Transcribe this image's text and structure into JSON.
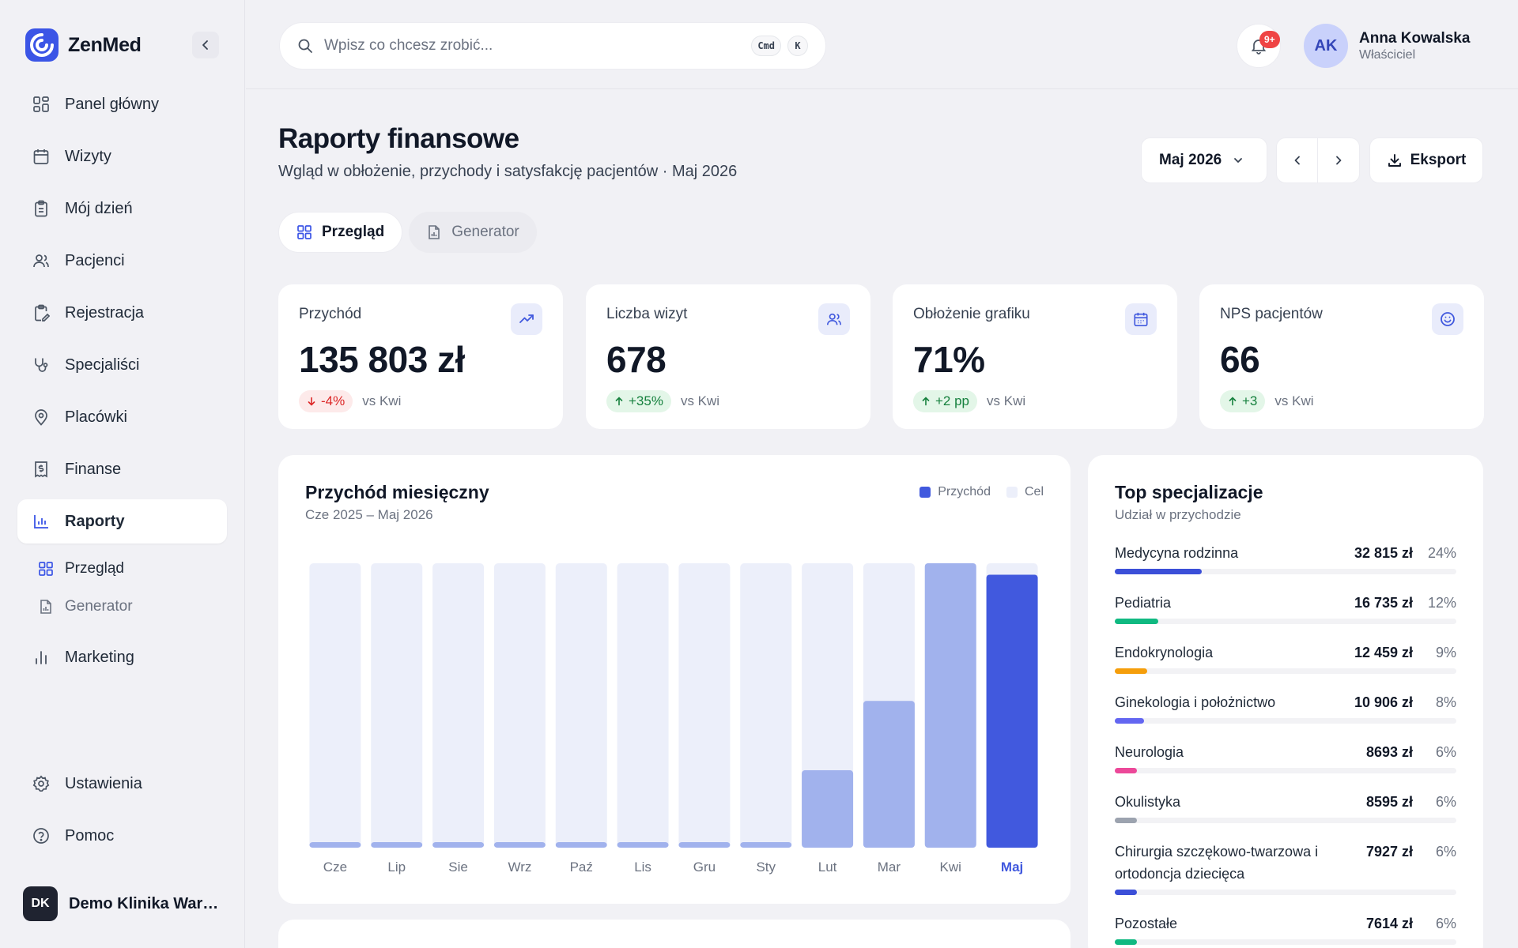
{
  "app": {
    "name": "ZenMed"
  },
  "sidebar": {
    "items": [
      {
        "label": "Panel główny",
        "icon": "dashboard-icon"
      },
      {
        "label": "Wizyty",
        "icon": "calendar-icon"
      },
      {
        "label": "Mój dzień",
        "icon": "clipboard-icon"
      },
      {
        "label": "Pacjenci",
        "icon": "users-icon"
      },
      {
        "label": "Rejestracja",
        "icon": "clipboard-edit-icon"
      },
      {
        "label": "Specjaliści",
        "icon": "stethoscope-icon"
      },
      {
        "label": "Placówki",
        "icon": "map-pin-icon"
      },
      {
        "label": "Finanse",
        "icon": "receipt-icon"
      },
      {
        "label": "Raporty",
        "icon": "bar-chart-icon"
      },
      {
        "label": "Marketing",
        "icon": "bar-chart-vertical-icon"
      }
    ],
    "subitems": [
      {
        "label": "Przegląd",
        "icon": "grid-icon"
      },
      {
        "label": "Generator",
        "icon": "file-chart-icon"
      }
    ],
    "bottom": [
      {
        "label": "Ustawienia",
        "icon": "gear-icon"
      },
      {
        "label": "Pomoc",
        "icon": "help-circle-icon"
      }
    ],
    "org": {
      "initials": "DK",
      "name": "Demo Klinika Warszawa"
    }
  },
  "header": {
    "search_placeholder": "Wpisz co chcesz zrobić...",
    "kbd_cmd": "Cmd",
    "kbd_k": "K",
    "notification_count": "9+",
    "user": {
      "initials": "AK",
      "name": "Anna Kowalska",
      "role": "Właściciel"
    }
  },
  "page": {
    "title": "Raporty finansowe",
    "subtitle": "Wgląd w obłożenie, przychody i satysfakcję pacjentów · Maj 2026",
    "month": "Maj 2026",
    "export_label": "Eksport",
    "tabs": [
      {
        "label": "Przegląd",
        "active": true
      },
      {
        "label": "Generator",
        "active": false
      }
    ]
  },
  "kpis": [
    {
      "label": "Przychód",
      "value": "135 803 zł",
      "delta": "-4%",
      "direction": "down",
      "compare": "vs Kwi",
      "icon": "trending-up-icon"
    },
    {
      "label": "Liczba wizyt",
      "value": "678",
      "delta": "+35%",
      "direction": "up",
      "compare": "vs Kwi",
      "icon": "users-icon"
    },
    {
      "label": "Obłożenie grafiku",
      "value": "71%",
      "delta": "+2 pp",
      "direction": "up",
      "compare": "vs Kwi",
      "icon": "calendar-icon"
    },
    {
      "label": "NPS pacjentów",
      "value": "66",
      "delta": "+3",
      "direction": "up",
      "compare": "vs Kwi",
      "icon": "smile-icon"
    }
  ],
  "colors": {
    "accent": "#4159de",
    "accent_light": "#a1b2ed",
    "target": "#eceffa",
    "red": "#dc2626",
    "green": "#15803d"
  },
  "chart_data": {
    "type": "bar",
    "title": "Przychód miesięczny",
    "subtitle": "Cze 2025 – Maj 2026",
    "categories": [
      "Cze",
      "Lip",
      "Sie",
      "Wrz",
      "Paź",
      "Lis",
      "Gru",
      "Sty",
      "Lut",
      "Mar",
      "Kwi",
      "Maj"
    ],
    "series": [
      {
        "name": "Przychód",
        "values": [
          300,
          300,
          300,
          300,
          300,
          300,
          300,
          300,
          38500,
          73000,
          141500,
          135803
        ]
      },
      {
        "name": "Cel",
        "values": [
          141500,
          141500,
          141500,
          141500,
          141500,
          141500,
          141500,
          141500,
          141500,
          141500,
          141500,
          141500
        ]
      }
    ],
    "ylim": [
      0,
      141500
    ],
    "highlight_index": 11,
    "grid": false,
    "legend": "top-right"
  },
  "specializations": {
    "title": "Top specjalizacje",
    "subtitle": "Udział w przychodzie",
    "items": [
      {
        "name": "Medycyna rodzinna",
        "amount": "32 815 zł",
        "pct": "24%",
        "share": 0.24,
        "color": "#3b4fd8"
      },
      {
        "name": "Pediatria",
        "amount": "16 735 zł",
        "pct": "12%",
        "share": 0.12,
        "color": "#10b981"
      },
      {
        "name": "Endokrynologia",
        "amount": "12 459 zł",
        "pct": "9%",
        "share": 0.09,
        "color": "#f59e0b"
      },
      {
        "name": "Ginekologia i położnictwo",
        "amount": "10 906 zł",
        "pct": "8%",
        "share": 0.08,
        "color": "#6366f1"
      },
      {
        "name": "Neurologia",
        "amount": "8693 zł",
        "pct": "6%",
        "share": 0.06,
        "color": "#ec4899"
      },
      {
        "name": "Okulistyka",
        "amount": "8595 zł",
        "pct": "6%",
        "share": 0.06,
        "color": "#9ca3af"
      },
      {
        "name": "Chirurgia szczękowo-twarzowa i ortodoncja dziecięca",
        "amount": "7927 zł",
        "pct": "6%",
        "share": 0.06,
        "color": "#3b4fd8"
      },
      {
        "name": "Pozostałe",
        "amount": "7614 zł",
        "pct": "6%",
        "share": 0.06,
        "color": "#10b981"
      }
    ]
  }
}
